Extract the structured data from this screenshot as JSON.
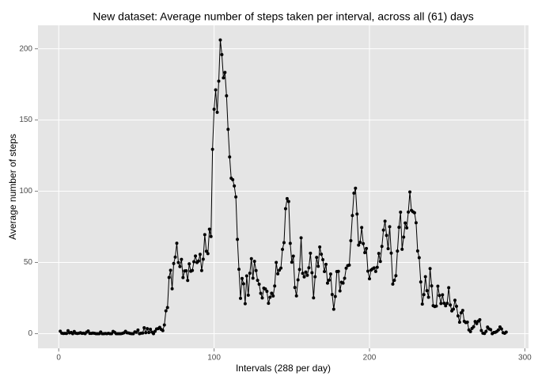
{
  "chart_data": {
    "type": "line",
    "title": "New dataset: Average number of steps taken per interval, across all (61) days",
    "xlabel": "Intervals (288 per day)",
    "ylabel": "Average number of steps",
    "color": "#000000",
    "grid": true,
    "xlim": [
      -13.35,
      302.35
    ],
    "xticks": [
      0,
      100,
      200,
      300
    ],
    "ylim": [
      -10.31,
      216.48
    ],
    "yticks": [
      0,
      50,
      100,
      150,
      200
    ],
    "x": [
      1,
      2,
      3,
      4,
      5,
      6,
      7,
      8,
      9,
      10,
      11,
      12,
      13,
      14,
      15,
      16,
      17,
      18,
      19,
      20,
      21,
      22,
      23,
      24,
      25,
      26,
      27,
      28,
      29,
      30,
      31,
      32,
      33,
      34,
      35,
      36,
      37,
      38,
      39,
      40,
      41,
      42,
      43,
      44,
      45,
      46,
      47,
      48,
      49,
      50,
      51,
      52,
      53,
      54,
      55,
      56,
      57,
      58,
      59,
      60,
      61,
      62,
      63,
      64,
      65,
      66,
      67,
      68,
      69,
      70,
      71,
      72,
      73,
      74,
      75,
      76,
      77,
      78,
      79,
      80,
      81,
      82,
      83,
      84,
      85,
      86,
      87,
      88,
      89,
      90,
      91,
      92,
      93,
      94,
      95,
      96,
      97,
      98,
      99,
      100,
      101,
      102,
      103,
      104,
      105,
      106,
      107,
      108,
      109,
      110,
      111,
      112,
      113,
      114,
      115,
      116,
      117,
      118,
      119,
      120,
      121,
      122,
      123,
      124,
      125,
      126,
      127,
      128,
      129,
      130,
      131,
      132,
      133,
      134,
      135,
      136,
      137,
      138,
      139,
      140,
      141,
      142,
      143,
      144,
      145,
      146,
      147,
      148,
      149,
      150,
      151,
      152,
      153,
      154,
      155,
      156,
      157,
      158,
      159,
      160,
      161,
      162,
      163,
      164,
      165,
      166,
      167,
      168,
      169,
      170,
      171,
      172,
      173,
      174,
      175,
      176,
      177,
      178,
      179,
      180,
      181,
      182,
      183,
      184,
      185,
      186,
      187,
      188,
      189,
      190,
      191,
      192,
      193,
      194,
      195,
      196,
      197,
      198,
      199,
      200,
      201,
      202,
      203,
      204,
      205,
      206,
      207,
      208,
      209,
      210,
      211,
      212,
      213,
      214,
      215,
      216,
      217,
      218,
      219,
      220,
      221,
      222,
      223,
      224,
      225,
      226,
      227,
      228,
      229,
      230,
      231,
      232,
      233,
      234,
      235,
      236,
      237,
      238,
      239,
      240,
      241,
      242,
      243,
      244,
      245,
      246,
      247,
      248,
      249,
      250,
      251,
      252,
      253,
      254,
      255,
      256,
      257,
      258,
      259,
      260,
      261,
      262,
      263,
      264,
      265,
      266,
      267,
      268,
      269,
      270,
      271,
      272,
      273,
      274,
      275,
      276,
      277,
      278,
      279,
      280,
      281,
      282,
      283,
      284,
      285,
      286,
      287,
      288
    ],
    "values": [
      1.72,
      0.34,
      0.13,
      0.15,
      0.08,
      2.09,
      0.53,
      0.87,
      0,
      1.47,
      0.3,
      0.13,
      0.32,
      0.68,
      0.15,
      0.34,
      0,
      1.11,
      1.83,
      0.17,
      0.17,
      0.38,
      0.26,
      0,
      0,
      0,
      1.13,
      0,
      0,
      0.13,
      0,
      0.23,
      0,
      0,
      1.55,
      0.94,
      0,
      0,
      0,
      0,
      0.21,
      0.62,
      1.62,
      0.58,
      0.49,
      0.08,
      0,
      0,
      1.19,
      0.94,
      2.57,
      0,
      0.34,
      0.36,
      4.11,
      0.66,
      3.49,
      0.83,
      3.11,
      1.11,
      0,
      1.66,
      3.3,
      3.55,
      4.42,
      2.96,
      2.1,
      6.06,
      16.02,
      18.34,
      39.45,
      44.49,
      31.49,
      49.26,
      53.77,
      63.45,
      49.96,
      47.08,
      52.15,
      39.34,
      44.02,
      44.17,
      37.36,
      49.04,
      43.81,
      44.38,
      50.51,
      54.51,
      49.92,
      50.98,
      55.68,
      44.32,
      52.26,
      69.55,
      57.85,
      56.15,
      73.38,
      68.21,
      129.43,
      157.53,
      171.15,
      155.4,
      177.3,
      206.17,
      195.92,
      179.57,
      183.4,
      167.02,
      143.45,
      124.04,
      109.11,
      108.11,
      103.72,
      95.97,
      66.21,
      45.23,
      24.79,
      38.75,
      34.98,
      21.06,
      40.57,
      26.98,
      42.42,
      52.66,
      38.92,
      50.79,
      44.28,
      37.42,
      34.7,
      28.34,
      25.09,
      31.94,
      31.36,
      29.68,
      21.32,
      25.55,
      28.38,
      26.47,
      33.43,
      49.98,
      42.04,
      44.6,
      46.04,
      59.19,
      63.87,
      87.7,
      94.85,
      92.77,
      63.4,
      50.17,
      54.47,
      32.42,
      26.53,
      37.74,
      45.06,
      67.28,
      42.34,
      39.88,
      43.26,
      40.98,
      46.25,
      56.43,
      42.75,
      25.13,
      39.96,
      53.55,
      47.32,
      60.81,
      55.75,
      51.96,
      43.58,
      48.7,
      35.47,
      37.55,
      41.85,
      27.51,
      17.11,
      26.08,
      43.62,
      43.77,
      30.02,
      36.08,
      35.49,
      38.85,
      45.96,
      47.75,
      48.13,
      65.32,
      82.91,
      98.66,
      102.11,
      83.96,
      62.13,
      64.13,
      74.55,
      63.17,
      56.91,
      59.77,
      43.87,
      38.57,
      44.66,
      45.45,
      46.21,
      43.68,
      46.62,
      56.3,
      50.72,
      61.23,
      72.72,
      78.94,
      68.94,
      59.66,
      75.09,
      56.51,
      34.77,
      37.45,
      40.68,
      58.02,
      74.7,
      85.32,
      59.26,
      67.77,
      77.7,
      74.25,
      85.34,
      99.45,
      86.58,
      85.6,
      84.87,
      77.83,
      58.04,
      53.36,
      36.33,
      20.72,
      27.4,
      40.02,
      30.21,
      25.55,
      45.66,
      33.53,
      19.62,
      19.02,
      19.34,
      33.34,
      26.81,
      21.17,
      27.3,
      21.34,
      19.55,
      21.32,
      32.3,
      20.15,
      15.94,
      17.23,
      23.45,
      19.25,
      12.45,
      8.02,
      14.66,
      16.3,
      8.68,
      7.79,
      8.13,
      2.62,
      1.45,
      3.68,
      4.81,
      8.51,
      7.08,
      8.7,
      9.75,
      2.21,
      0.32,
      0.11,
      1.6,
      4.6,
      3.3,
      2.85,
      0,
      0.83,
      0.96,
      1.58,
      2.6,
      4.7,
      3.3,
      0.64,
      0.23,
      1.08
    ]
  }
}
